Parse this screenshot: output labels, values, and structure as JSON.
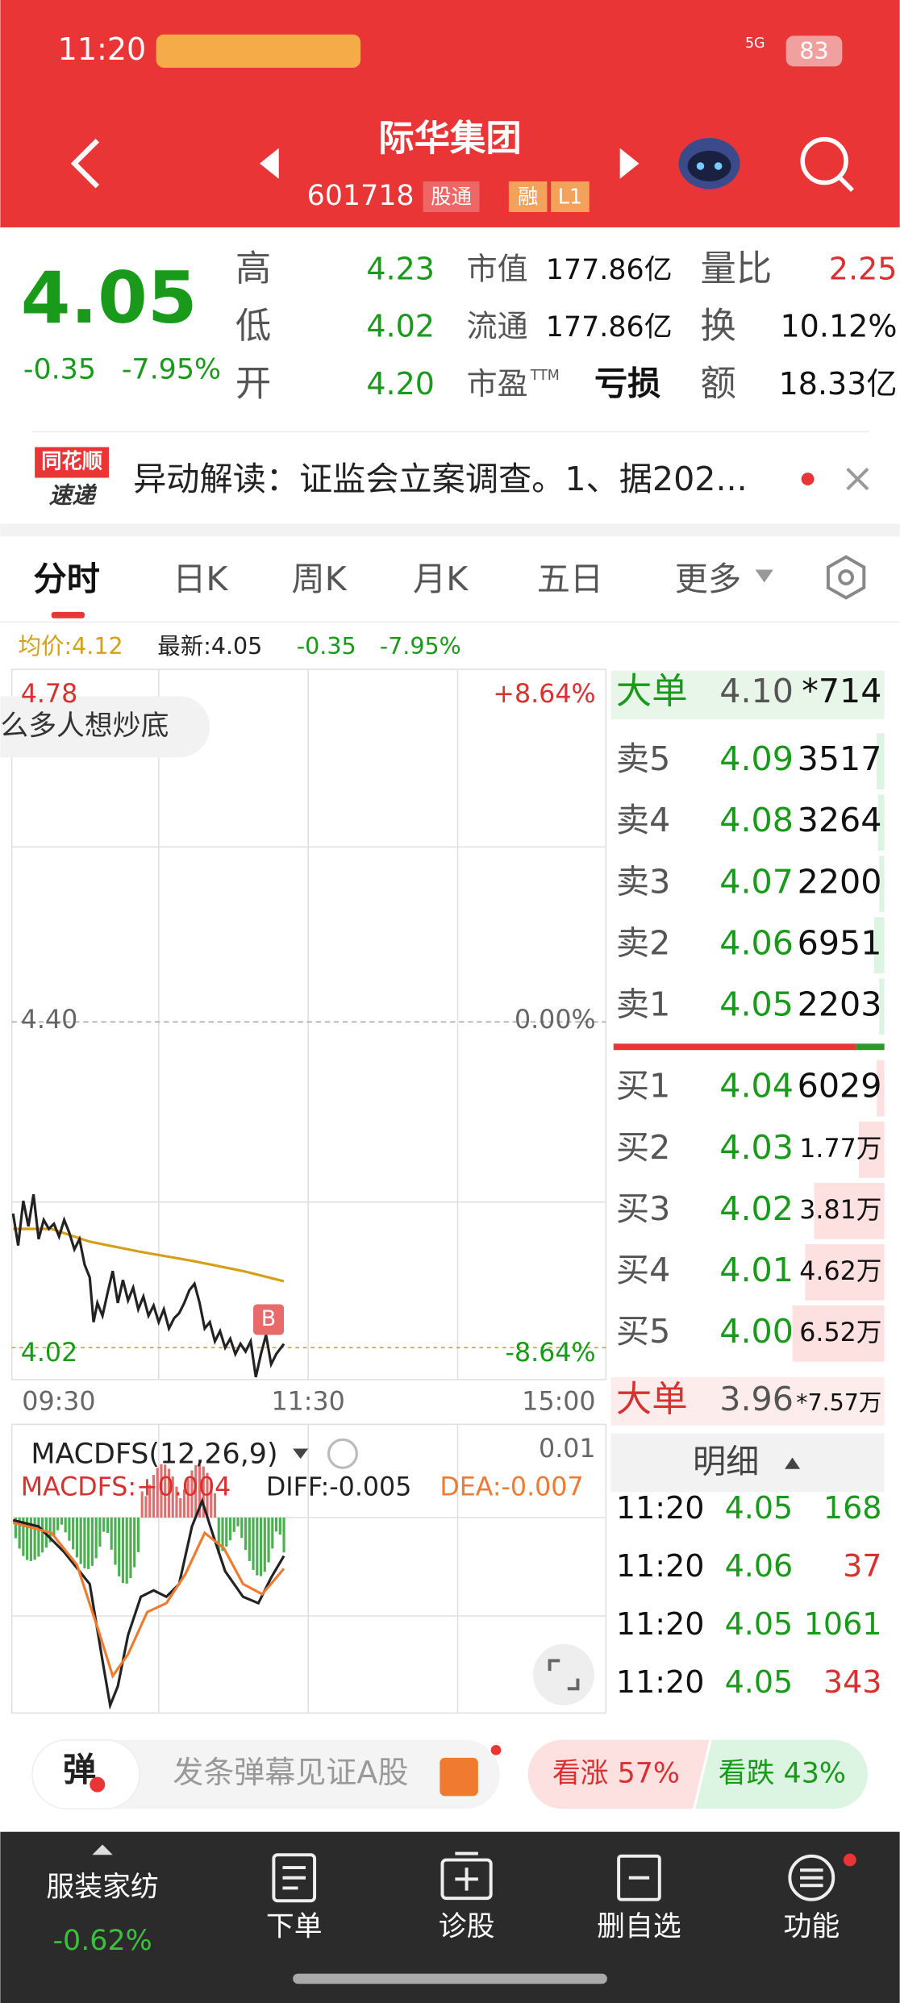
{
  "status": {
    "time": "11:20",
    "signal": "5G",
    "battery": "83"
  },
  "header": {
    "title": "际华集团",
    "code": "601718",
    "badges": [
      "股通",
      "融",
      "L1"
    ]
  },
  "quote": {
    "price": "4.05",
    "change": "-0.35",
    "change_pct": "-7.95%",
    "col1": [
      {
        "label": "高",
        "value": "4.23"
      },
      {
        "label": "低",
        "value": "4.02"
      },
      {
        "label": "开",
        "value": "4.20"
      }
    ],
    "col2": [
      {
        "label": "市值",
        "value": "177.86亿"
      },
      {
        "label": "流通",
        "value": "177.86亿"
      },
      {
        "label": "市盈",
        "sup": "TTM",
        "value": "亏损"
      }
    ],
    "col3": [
      {
        "label": "量比",
        "value": "2.25"
      },
      {
        "label": "换",
        "value": "10.12%"
      },
      {
        "label": "额",
        "value": "18.33亿"
      }
    ]
  },
  "news": {
    "logo_top": "同花顺",
    "logo_bottom": "速递",
    "text": "异动解读：证监会立案调查。1、据202..."
  },
  "tabs": [
    "分时",
    "日K",
    "周K",
    "月K",
    "五日",
    "更多"
  ],
  "info": {
    "avg": "均价:4.12",
    "latest": "最新:4.05",
    "change": "-0.35",
    "change_pct": "-7.95%"
  },
  "chart": {
    "top_price": "4.78",
    "top_pct": "+8.64%",
    "mid_price": "4.40",
    "mid_pct": "0.00%",
    "bottom_price": "4.02",
    "bottom_pct": "-8.64%",
    "times": [
      "09:30",
      "11:30",
      "15:00"
    ],
    "bubble": "么多人想炒底",
    "marker": "B"
  },
  "macd": {
    "title": "MACDFS(12,26,9)",
    "top": "0.01",
    "macdfs": "MACDFS:+0.004",
    "diff": "DIFF:-0.005",
    "dea": "DEA:-0.007"
  },
  "book": {
    "big_sell": {
      "label": "大单",
      "price": "4.10",
      "volume": "*714"
    },
    "asks": [
      {
        "label": "卖5",
        "price": "4.09",
        "volume": "3517"
      },
      {
        "label": "卖4",
        "price": "4.08",
        "volume": "3264"
      },
      {
        "label": "卖3",
        "price": "4.07",
        "volume": "2200"
      },
      {
        "label": "卖2",
        "price": "4.06",
        "volume": "6951"
      },
      {
        "label": "卖1",
        "price": "4.05",
        "volume": "2203"
      }
    ],
    "bids": [
      {
        "label": "买1",
        "price": "4.04",
        "volume": "6029"
      },
      {
        "label": "买2",
        "price": "4.03",
        "volume": "1.77万"
      },
      {
        "label": "买3",
        "price": "4.02",
        "volume": "3.81万"
      },
      {
        "label": "买4",
        "price": "4.01",
        "volume": "4.62万"
      },
      {
        "label": "买5",
        "price": "4.00",
        "volume": "6.52万"
      }
    ],
    "big_buy": {
      "label": "大单",
      "price": "3.96",
      "volume": "*7.57万"
    },
    "detail": "明细",
    "trades": [
      {
        "time": "11:20",
        "price": "4.05",
        "volume": "168"
      },
      {
        "time": "11:20",
        "price": "4.06",
        "volume": "37"
      },
      {
        "time": "11:20",
        "price": "4.05",
        "volume": "1061"
      },
      {
        "time": "11:20",
        "price": "4.05",
        "volume": "343"
      }
    ]
  },
  "bottom": {
    "danmu_button": "弹",
    "danmu_placeholder": "发条弹幕见证A股",
    "bull": "看涨 57%",
    "bear": "看跌 43%"
  },
  "nav": {
    "sector": "服装家纺",
    "sector_change": "-0.62%",
    "items": [
      "下单",
      "诊股",
      "删自选",
      "功能"
    ]
  }
}
